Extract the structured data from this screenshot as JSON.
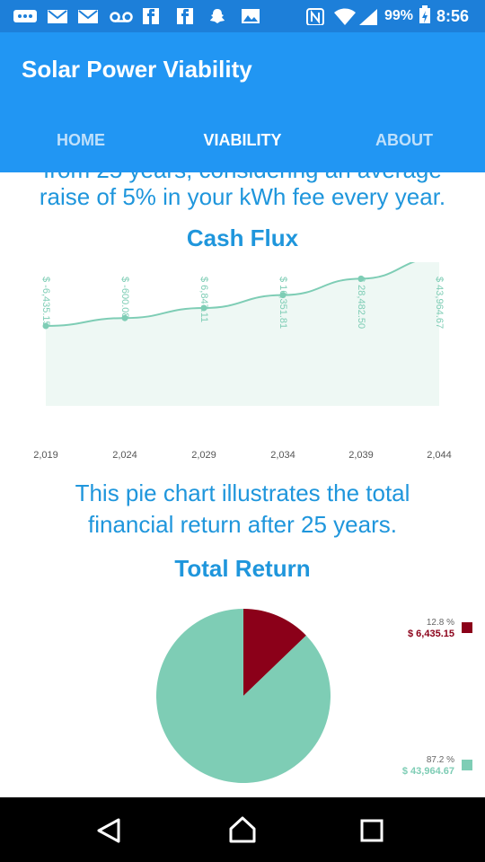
{
  "status_bar": {
    "battery_percent": "99%",
    "time": "8:56",
    "icons": [
      "chat-icon",
      "gmail-icon",
      "gmail-icon",
      "voicemail-icon",
      "facebook-icon",
      "facebook-icon",
      "snapchat-icon",
      "gallery-icon",
      "nfc-icon",
      "wifi-icon",
      "signal-icon",
      "battery-icon"
    ]
  },
  "app_bar": {
    "title": "Solar Power Viability",
    "tabs": [
      {
        "label": "HOME",
        "active": false
      },
      {
        "label": "VIABILITY",
        "active": true
      },
      {
        "label": "ABOUT",
        "active": false
      }
    ]
  },
  "content": {
    "intro_cut_line": "from 25 years, considering an average",
    "intro_line2": "raise of 5% in your kWh fee every year.",
    "cash_flux_title": "Cash Flux",
    "pie_desc_line1": "This pie chart illustrates the total",
    "pie_desc_line2": "financial return after 25 years.",
    "total_return_title": "Total Return"
  },
  "chart_data": [
    {
      "type": "line",
      "x": [
        "2,019",
        "2,024",
        "2,029",
        "2,034",
        "2,039",
        "2,044"
      ],
      "values": [
        -6435.15,
        -600.08,
        6847.11,
        16351.81,
        28482.5,
        43964.67
      ],
      "data_labels": [
        "$ -6,435.15",
        "$ -600.08",
        "$ 6,847.11",
        "$ 16,351.81",
        "$ 28,482.50",
        "$ 43,964.67"
      ],
      "color": "#7ecdb5"
    },
    {
      "type": "pie",
      "slices": [
        {
          "percent_label": "12.8 %",
          "value_label": "$ 6,435.15",
          "fraction": 0.128,
          "color": "#8b0019"
        },
        {
          "percent_label": "87.2 %",
          "value_label": "$ 43,964.67",
          "fraction": 0.872,
          "color": "#7ecdb5"
        }
      ]
    }
  ],
  "nav": {
    "icons": [
      "back-icon",
      "home-icon",
      "recents-icon"
    ]
  }
}
